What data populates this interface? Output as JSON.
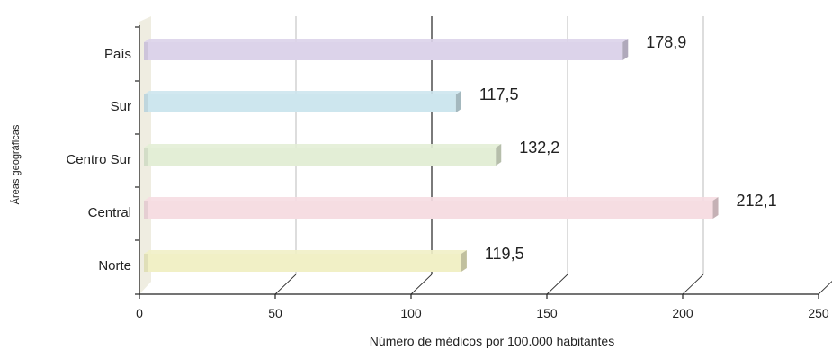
{
  "chart_data": {
    "type": "bar",
    "orientation": "horizontal",
    "style": "3d",
    "categories": [
      "País",
      "Sur",
      "Centro Sur",
      "Central",
      "Norte"
    ],
    "values": [
      178.9,
      117.5,
      132.2,
      212.1,
      119.5
    ],
    "value_labels": [
      "178,9",
      "117,5",
      "132,2",
      "212,1",
      "119,5"
    ],
    "colors": [
      "#dcd3ea",
      "#cde6ee",
      "#e3eed6",
      "#f6dde2",
      "#f1f0c6"
    ],
    "xlabel": "Número de médicos por 100.000 habitantes",
    "ylabel": "Áreas geográficas",
    "xlim": [
      0,
      250
    ],
    "xticks": [
      0,
      50,
      100,
      150,
      200,
      250
    ],
    "grid": true
  }
}
